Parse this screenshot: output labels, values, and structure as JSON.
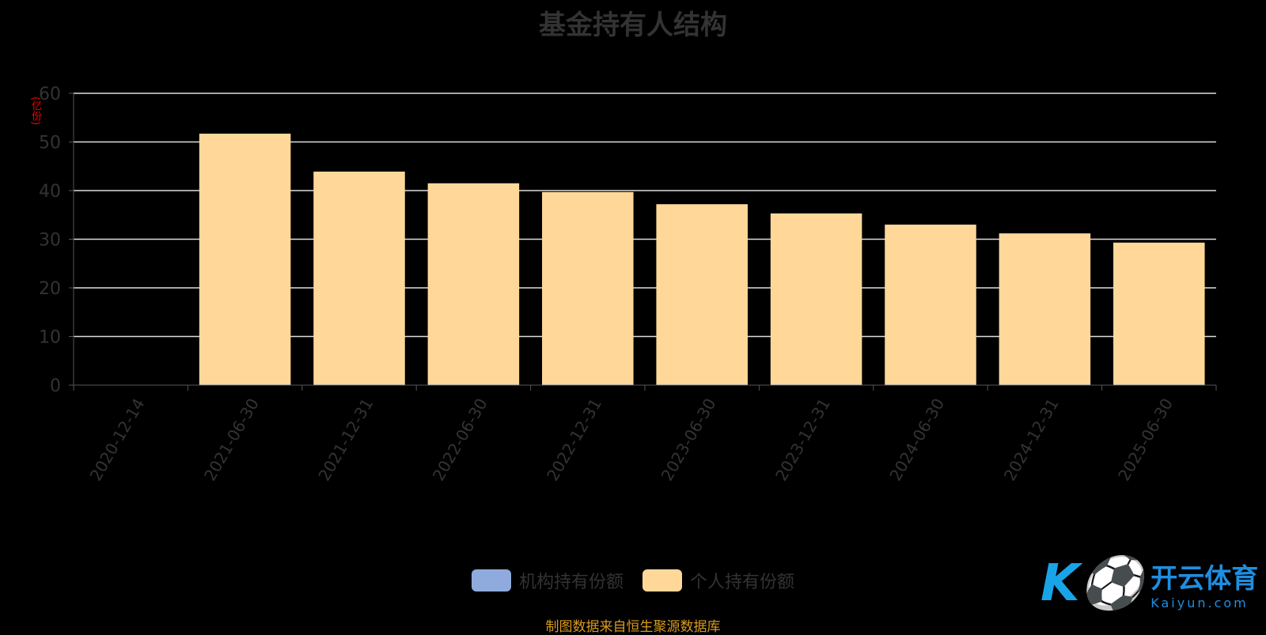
{
  "chart_data": {
    "type": "bar",
    "stacked": true,
    "title": "基金持有人结构",
    "ylabel": "(亿份)",
    "ylim": [
      0,
      60
    ],
    "yticks": [
      0,
      10,
      20,
      30,
      40,
      50,
      60
    ],
    "grid": true,
    "legend_placement": "bottom",
    "categories": [
      "2020-12-14",
      "2021-06-30",
      "2021-12-31",
      "2022-06-30",
      "2022-12-31",
      "2023-06-30",
      "2023-12-31",
      "2024-06-30",
      "2024-12-31",
      "2025-06-30"
    ],
    "series": [
      {
        "name": "机构持有份额",
        "color": "#8faadc",
        "values": [
          0,
          0.1,
          0.1,
          0.1,
          0.1,
          0.1,
          0.1,
          0.1,
          0.1,
          0.1
        ]
      },
      {
        "name": "个人持有份额",
        "color": "#ffd899",
        "values": [
          0,
          51.6,
          43.8,
          41.4,
          39.6,
          37.1,
          35.2,
          32.9,
          31.1,
          29.2
        ]
      }
    ]
  },
  "source": "制图数据来自恒生聚源数据库",
  "watermark": {
    "mark": "K",
    "name": "开云体育",
    "url": "Kaiyun.com"
  }
}
